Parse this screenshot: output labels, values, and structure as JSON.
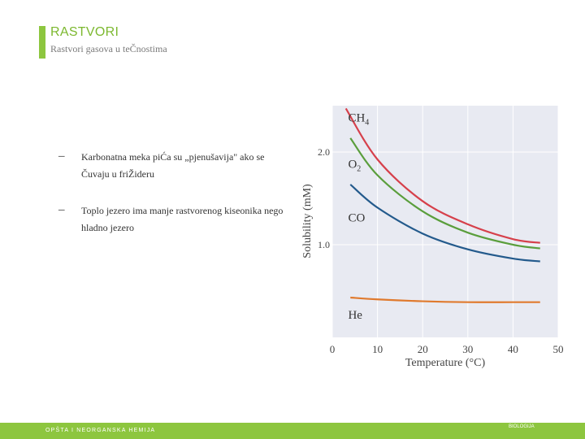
{
  "slide": {
    "title": "RASTVORI",
    "subtitle": "Rastvori gasova u teČnostima",
    "accent_color": "#8dc63f"
  },
  "bullets": [
    {
      "text": "Karbonatna meka piĆa su „pjenušavija\" ako se Čuvaju u friŽideru"
    },
    {
      "text": "Toplo jezero ima manje rastvorenog kiseonika nego hladno jezero"
    }
  ],
  "chart_data": {
    "type": "line",
    "xlabel": "Temperature (°C)",
    "ylabel": "Solubility (mM)",
    "xlim": [
      0,
      50
    ],
    "ylim": [
      0,
      2.5
    ],
    "x_ticks": [
      "0",
      "10",
      "20",
      "30",
      "40",
      "50"
    ],
    "y_ticks": [
      "1.0",
      "2.0"
    ],
    "grid": true,
    "series": [
      {
        "name": "CH4",
        "color": "#d6404b",
        "x": [
          3,
          10,
          20,
          30,
          40,
          46
        ],
        "y": [
          2.47,
          1.92,
          1.47,
          1.22,
          1.06,
          1.02
        ]
      },
      {
        "name": "O2",
        "color": "#5a9e3c",
        "x": [
          4,
          10,
          20,
          30,
          40,
          46
        ],
        "y": [
          2.15,
          1.75,
          1.36,
          1.13,
          1.0,
          0.96
        ]
      },
      {
        "name": "CO",
        "color": "#235a8c",
        "x": [
          4,
          10,
          20,
          30,
          40,
          46
        ],
        "y": [
          1.65,
          1.4,
          1.12,
          0.95,
          0.85,
          0.82
        ]
      },
      {
        "name": "He",
        "color": "#e07a2e",
        "x": [
          4,
          10,
          20,
          30,
          40,
          46
        ],
        "y": [
          0.43,
          0.41,
          0.39,
          0.38,
          0.38,
          0.38
        ]
      }
    ]
  },
  "footer": {
    "left": "OPŠTA I NEORGANSKA HEMIJA",
    "right": "BIOLOGIJA"
  }
}
